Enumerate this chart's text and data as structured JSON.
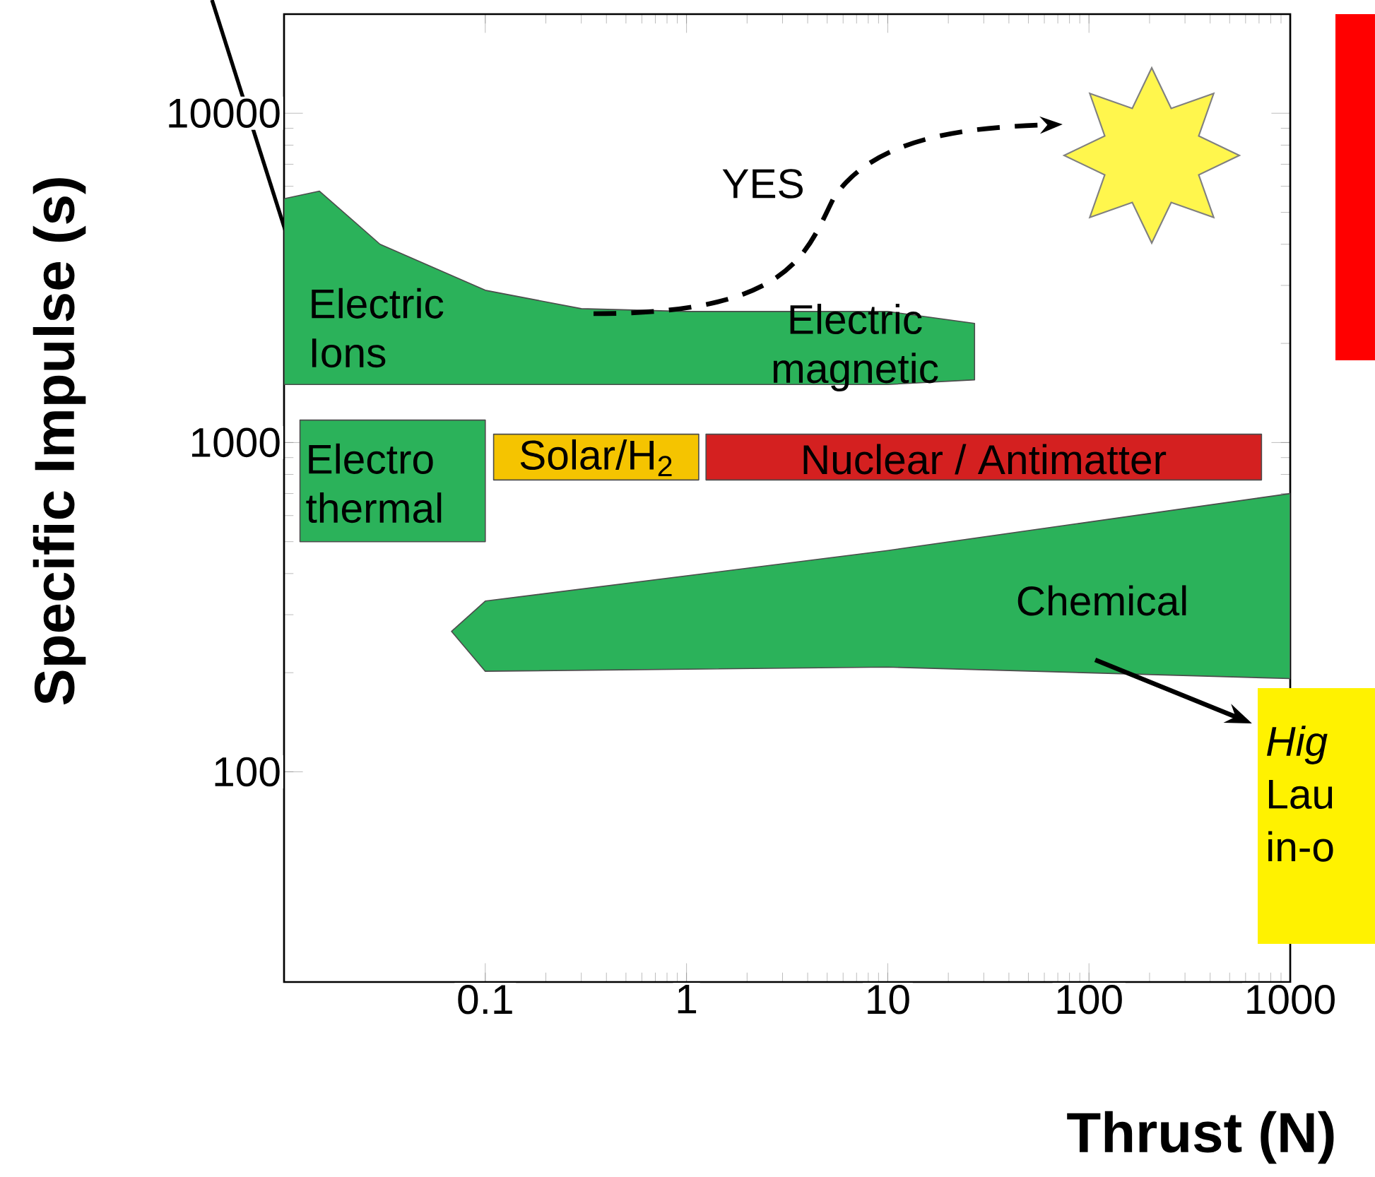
{
  "chart_data": {
    "type": "area",
    "log": "xy",
    "xlabel": "Thrust (N)",
    "ylabel": "Specific Impulse (s)",
    "xlim": [
      0.01,
      1000
    ],
    "ylim": [
      23,
      20000
    ],
    "xticks": [
      0.1,
      1,
      10,
      100,
      1000
    ],
    "yticks": [
      100,
      1000,
      10000
    ],
    "series": [
      {
        "color": "#2bb25a",
        "x": [
          0.01,
          0.015,
          0.03,
          0.1,
          0.3,
          1,
          10,
          27,
          27,
          10,
          1,
          0.3,
          0.1,
          0.03,
          0.015,
          0.01
        ],
        "values": [
          5500,
          5800,
          4000,
          2900,
          2550,
          2500,
          2500,
          2300,
          1550,
          1500,
          1500,
          1500,
          1500,
          1500,
          1500,
          1500
        ]
      },
      {
        "color": "#2bb25a",
        "x": [
          0.012,
          0.1,
          0.1,
          0.012
        ],
        "values": [
          1170,
          1170,
          500,
          500
        ]
      },
      {
        "color": "#f5c400",
        "x": [
          0.11,
          1.15,
          1.15,
          0.11
        ],
        "values": [
          1060,
          1060,
          770,
          770
        ]
      },
      {
        "color": "#d42020",
        "x": [
          1.25,
          720,
          720,
          1.25
        ],
        "values": [
          1060,
          1060,
          770,
          770
        ]
      },
      {
        "color": "#2bb25a",
        "x": [
          0.068,
          0.1,
          10,
          1000,
          1000,
          10,
          0.1
        ],
        "values": [
          267,
          330,
          470,
          700,
          192,
          208,
          202
        ]
      }
    ],
    "annotations": [
      "Electric Ions",
      "Electric magnetic",
      "Electro thermal",
      "Solar/H$_{2}$",
      "Nuclear / Antimatter",
      "Chemical",
      "YES",
      "Hig",
      "Lau",
      "in-o"
    ]
  }
}
